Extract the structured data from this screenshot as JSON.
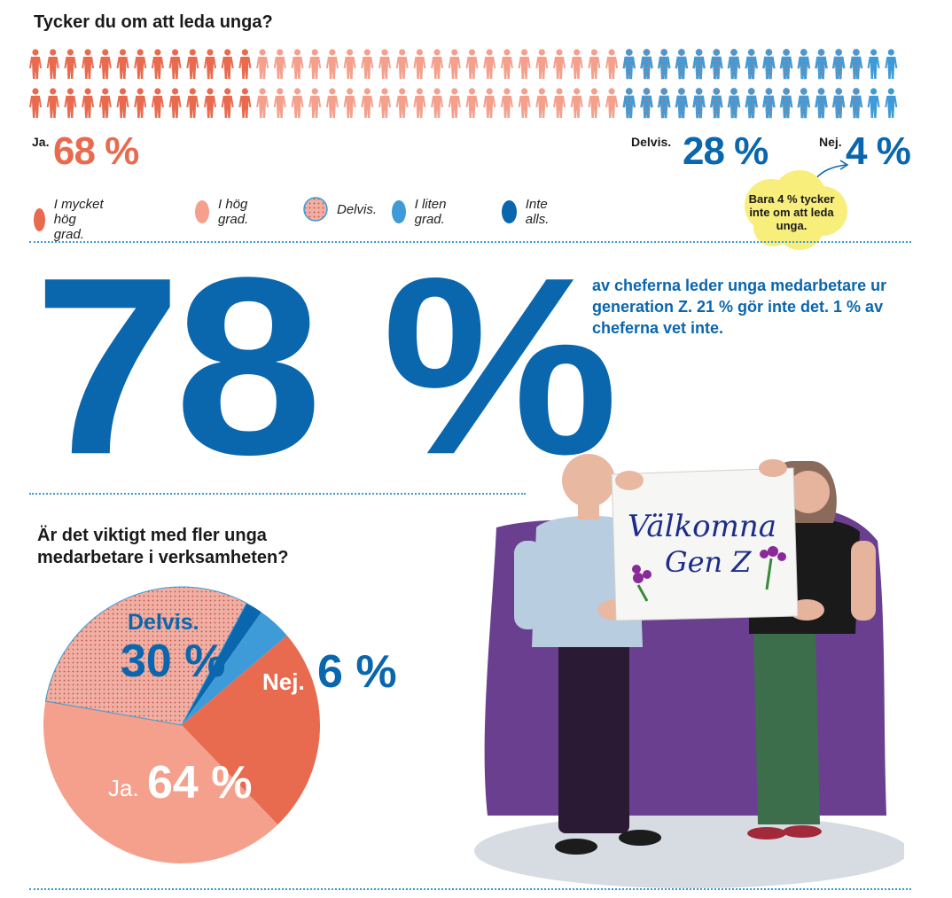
{
  "q1": {
    "title": "Tycker du om att leda unga?",
    "ja_label": "Ja.",
    "ja_pct": "68 %",
    "delvis_label": "Delvis.",
    "delvis_pct": "28 %",
    "nej_label": "Nej.",
    "nej_pct": "4 %",
    "note": "Bara 4 % tycker inte om att leda unga.",
    "legend": [
      {
        "label": "I mycket hög grad.",
        "color": "#e86b4f"
      },
      {
        "label": "I hög grad.",
        "color": "#f4a08c"
      },
      {
        "label": "Delvis.",
        "color": "#efa79a"
      },
      {
        "label": "I liten grad.",
        "color": "#3f9bd7"
      },
      {
        "label": "Inte alls.",
        "color": "#0a66ad"
      }
    ]
  },
  "stat": {
    "value": "78 %",
    "text": "av cheferna leder unga medarbetare ur generation Z. 21 % gör inte det. 1 % av cheferna vet inte."
  },
  "q2": {
    "title": "Är det viktigt med fler unga medarbetare i verksamheten?"
  },
  "sign": {
    "line1": "Välkomna",
    "line2": "Gen Z"
  },
  "chart_data": [
    {
      "type": "pictogram",
      "title": "Tycker du om att leda unga?",
      "icons_total": 100,
      "rows": 2,
      "categories": [
        "I mycket hög grad.",
        "I hög grad.",
        "Delvis.",
        "I liten grad.",
        "Inte alls."
      ],
      "values": [
        26,
        42,
        28,
        3,
        1
      ],
      "group_totals": [
        {
          "label": "Ja.",
          "value": 68
        },
        {
          "label": "Delvis.",
          "value": 28
        },
        {
          "label": "Nej.",
          "value": 4
        }
      ],
      "colors": [
        "#e86b4f",
        "#f4a08c",
        "#efa79a",
        "#3f9bd7",
        "#0a66ad"
      ]
    },
    {
      "type": "pie",
      "title": "Är det viktigt med fler unga medarbetare i verksamheten?",
      "slices": [
        {
          "label": "Ja.",
          "value": 64,
          "pct": "64 %",
          "parts": [
            {
              "name": "I mycket hög grad.",
              "value": 24,
              "color": "#e86b4f"
            },
            {
              "name": "I hög grad.",
              "value": 40,
              "color": "#f4a08c"
            }
          ]
        },
        {
          "label": "Delvis.",
          "value": 30,
          "pct": "30 %",
          "color": "#efa79a"
        },
        {
          "label": "Nej.",
          "value": 6,
          "pct": "6 %",
          "parts": [
            {
              "name": "I liten grad.",
              "value": 4,
              "color": "#3f9bd7"
            },
            {
              "name": "Inte alls.",
              "value": 2,
              "color": "#0a66ad"
            }
          ]
        }
      ]
    }
  ]
}
